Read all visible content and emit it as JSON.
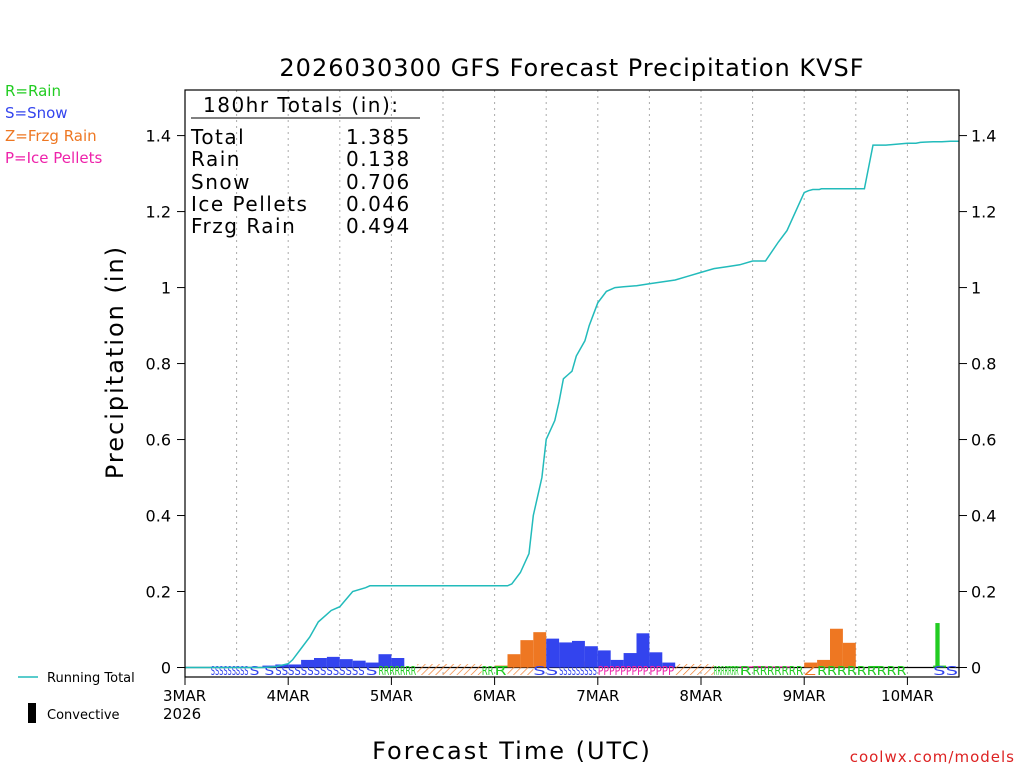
{
  "colors": {
    "rain": "#22cc22",
    "snow": "#3344ee",
    "frzg_rain": "#ee7722",
    "ice_pellets": "#ee22aa",
    "running_total": "#22bbbb",
    "convective": "#000000",
    "credit": "#dd2222",
    "grid": "#aaaaaa",
    "text": "#000000"
  },
  "legend_types": [
    {
      "label": "R=Rain",
      "color_key": "rain"
    },
    {
      "label": "S=Snow",
      "color_key": "snow"
    },
    {
      "label": "Z=Frzg Rain",
      "color_key": "frzg_rain"
    },
    {
      "label": "P=Ice Pellets",
      "color_key": "ice_pellets"
    }
  ],
  "totals": {
    "header": "180hr Totals (in):",
    "rows": [
      {
        "label": "Total",
        "value": "1.385"
      },
      {
        "label": "Rain",
        "value": "0.138"
      },
      {
        "label": "Snow",
        "value": "0.706"
      },
      {
        "label": "Ice Pellets",
        "value": "0.046"
      },
      {
        "label": "Frzg Rain",
        "value": "0.494"
      }
    ]
  },
  "bottom_legend": {
    "running_total": "Running Total",
    "convective": "Convective"
  },
  "credit": "coolwx.com/models",
  "chart_data": {
    "type": "bar",
    "title": "2026030300 GFS Forecast Precipitation KVSF",
    "xlabel": "Forecast Time (UTC)",
    "ylabel": "Precipitation (in)",
    "ylim": [
      -0.025,
      1.52
    ],
    "yticks": [
      0,
      0.2,
      0.4,
      0.6,
      0.8,
      1,
      1.2,
      1.4
    ],
    "ytick_labels": [
      "0",
      "0.2",
      "0.4",
      "0.6",
      "0.8",
      "1",
      "1.2",
      "1.4"
    ],
    "xlim_hours": [
      0,
      180
    ],
    "xticks_hours": [
      0,
      24,
      48,
      72,
      96,
      120,
      144,
      168
    ],
    "xtick_labels": [
      "3MAR",
      "4MAR",
      "5MAR",
      "6MAR",
      "7MAR",
      "8MAR",
      "9MAR",
      "10MAR"
    ],
    "year_label": "2026",
    "bar_width_hours": 3,
    "bar_series": [
      {
        "name": "Snow",
        "type": "snow",
        "bars": [
          [
            18,
            0.005
          ],
          [
            21,
            0.008
          ],
          [
            24,
            0.008
          ],
          [
            27,
            0.02
          ],
          [
            30,
            0.025
          ],
          [
            33,
            0.028
          ],
          [
            36,
            0.022
          ],
          [
            39,
            0.018
          ],
          [
            42,
            0.013
          ],
          [
            45,
            0.035
          ],
          [
            48,
            0.025
          ]
        ]
      },
      {
        "name": "Frzg Rain",
        "type": "frzg_rain",
        "bars": [
          [
            72,
            0.005
          ],
          [
            75,
            0.035
          ],
          [
            78,
            0.072
          ],
          [
            81,
            0.093
          ],
          [
            90,
            0.016
          ],
          [
            144,
            0.013
          ],
          [
            147,
            0.02
          ],
          [
            150,
            0.102
          ],
          [
            153,
            0.065
          ]
        ]
      },
      {
        "name": "Snow",
        "type": "snow",
        "bars": [
          [
            84,
            0.076
          ],
          [
            87,
            0.066
          ],
          [
            90,
            0.07
          ],
          [
            93,
            0.056
          ],
          [
            96,
            0.045
          ],
          [
            99,
            0.02
          ],
          [
            102,
            0.038
          ],
          [
            105,
            0.09
          ],
          [
            108,
            0.04
          ],
          [
            111,
            0.013
          ]
        ]
      },
      {
        "name": "Ice Pellets",
        "type": "ice_pellets",
        "bars": [
          [
            129,
            0.003
          ],
          [
            132,
            0.004
          ],
          [
            135,
            0.003
          ],
          [
            138,
            0.003
          ]
        ]
      },
      {
        "name": "Rain",
        "type": "rain",
        "bars": [
          [
            72,
            0.004
          ],
          [
            126,
            0.003
          ],
          [
            159,
            0.004
          ],
          [
            174,
            0.005
          ]
        ]
      },
      {
        "name": "Rain",
        "type": "rain",
        "bars": [
          [
            174.5,
            0.117
          ]
        ],
        "width_hours": 1
      }
    ],
    "running_total": {
      "x": [
        0,
        18,
        21,
        24,
        25,
        27,
        29,
        30,
        31,
        33,
        34,
        36,
        39,
        42,
        43,
        48,
        60,
        72,
        74,
        75,
        76,
        78,
        80,
        81,
        83,
        84,
        86,
        87,
        88,
        89,
        90,
        91,
        93,
        94,
        95,
        96,
        98,
        100,
        102,
        105,
        108,
        111,
        114,
        117,
        120,
        123,
        126,
        129,
        132,
        135,
        138,
        140,
        142,
        144,
        145,
        146,
        147,
        147.5,
        148,
        150,
        152,
        155,
        158,
        160,
        163,
        166,
        168,
        170,
        171,
        172,
        174,
        176,
        178,
        180
      ],
      "y": [
        0,
        0,
        0.002,
        0.01,
        0.02,
        0.05,
        0.08,
        0.1,
        0.12,
        0.14,
        0.15,
        0.16,
        0.2,
        0.21,
        0.215,
        0.215,
        0.215,
        0.215,
        0.215,
        0.215,
        0.22,
        0.25,
        0.3,
        0.4,
        0.5,
        0.6,
        0.65,
        0.7,
        0.76,
        0.77,
        0.78,
        0.82,
        0.86,
        0.9,
        0.93,
        0.96,
        0.99,
        1.0,
        1.002,
        1.005,
        1.01,
        1.015,
        1.02,
        1.03,
        1.04,
        1.05,
        1.055,
        1.06,
        1.07,
        1.07,
        1.12,
        1.15,
        1.2,
        1.25,
        1.255,
        1.258,
        1.258,
        1.258,
        1.26,
        1.26,
        1.26,
        1.26,
        1.26,
        1.375,
        1.375,
        1.378,
        1.38,
        1.38,
        1.382,
        1.383,
        1.384,
        1.384,
        1.385,
        1.385
      ]
    },
    "type_strip": [
      {
        "start": 6,
        "end": 15,
        "type": "snow",
        "text": "SSSSSSSSS"
      },
      {
        "start": 15,
        "end": 21,
        "type": "snow",
        "text": "S S"
      },
      {
        "start": 21,
        "end": 42,
        "type": "snow",
        "text": "SSSSSSSSSSSSSS"
      },
      {
        "start": 42,
        "end": 45,
        "type": "snow",
        "text": "S"
      },
      {
        "start": 45,
        "end": 54,
        "type": "rain",
        "text": "RRRRRRR"
      },
      {
        "start": 54,
        "end": 69,
        "type": "frzg_rain",
        "hatch": true
      },
      {
        "start": 69,
        "end": 72,
        "type": "rain",
        "text": "RR"
      },
      {
        "start": 72,
        "end": 75,
        "type": "rain",
        "text": "R"
      },
      {
        "start": 75,
        "end": 81,
        "type": "frzg_rain",
        "hatch": true
      },
      {
        "start": 81,
        "end": 87,
        "type": "snow",
        "text": "SS"
      },
      {
        "start": 87,
        "end": 96,
        "type": "snow",
        "text": "SSSSSSSSS"
      },
      {
        "start": 96,
        "end": 108,
        "type": "ice_pellets",
        "text": "PPPPPPPPP"
      },
      {
        "start": 108,
        "end": 114,
        "type": "ice_pellets",
        "text": "PPPP"
      },
      {
        "start": 114,
        "end": 123,
        "type": "frzg_rain",
        "hatch": true
      },
      {
        "start": 123,
        "end": 129,
        "type": "rain",
        "text": "RRRRRRR"
      },
      {
        "start": 129,
        "end": 132,
        "type": "rain",
        "text": "R"
      },
      {
        "start": 132,
        "end": 144,
        "type": "rain",
        "text": "RRRRRRR"
      },
      {
        "start": 144,
        "end": 147,
        "type": "frzg_rain",
        "text": "Z"
      },
      {
        "start": 147,
        "end": 168,
        "type": "rain",
        "text": "RRRRRRRRR"
      },
      {
        "start": 174,
        "end": 180,
        "type": "snow",
        "text": "SS"
      }
    ]
  }
}
